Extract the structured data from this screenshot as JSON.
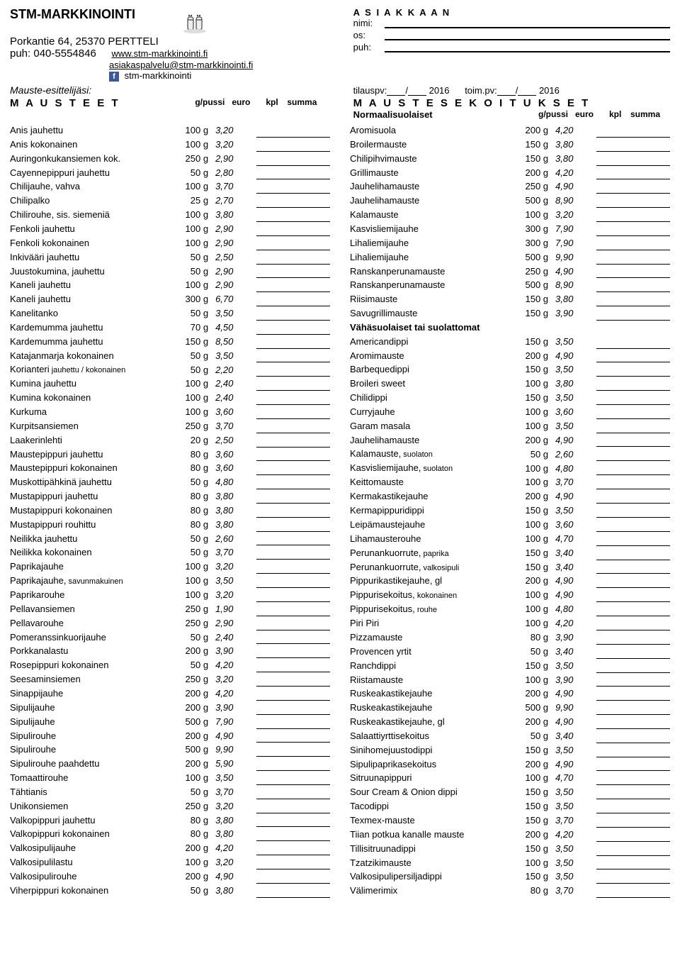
{
  "header": {
    "company": "STM-MARKKINOINTI",
    "address": "Porkantie 64, 25370 PERTTELI",
    "phone": "puh: 040-5554846",
    "web": "www.stm-markkinointi.fi",
    "email": "asiakaspalvelu@stm-markkinointi.fi",
    "fb": "stm-markkinointi",
    "customer_title": "A S I A K K A A N",
    "lbl_name": "nimi:",
    "lbl_addr": "os:",
    "lbl_phone": "puh:",
    "presenter": "Mauste-esittelijäsi:",
    "orderdate_lbl": "tilauspv:",
    "delivdate_lbl": "toim.pv:",
    "year": "2016"
  },
  "left": {
    "title": "M A U S T E E T",
    "h_g": "g/pussi",
    "h_e": "euro",
    "h_k": "kpl",
    "h_s": "summa",
    "rows": [
      {
        "n": "Anis jauhettu",
        "g": "100 g",
        "e": "3,20"
      },
      {
        "n": "Anis kokonainen",
        "g": "100 g",
        "e": "3,20"
      },
      {
        "n": "Auringonkukansiemen kok.",
        "g": "250 g",
        "e": "2,90"
      },
      {
        "n": "Cayennepippuri jauhettu",
        "g": "50 g",
        "e": "2,80"
      },
      {
        "n": "Chilijauhe, vahva",
        "g": "100 g",
        "e": "3,70"
      },
      {
        "n": "Chilipalko",
        "g": "25 g",
        "e": "2,70"
      },
      {
        "n": "Chilirouhe, sis. siemeniä",
        "g": "100 g",
        "e": "3,80"
      },
      {
        "n": "Fenkoli jauhettu",
        "g": "100 g",
        "e": "2,90"
      },
      {
        "n": "Fenkoli kokonainen",
        "g": "100 g",
        "e": "2,90"
      },
      {
        "n": "Inkivääri jauhettu",
        "g": "50 g",
        "e": "2,50"
      },
      {
        "n": "Juustokumina, jauhettu",
        "g": "50 g",
        "e": "2,90"
      },
      {
        "n": "Kaneli jauhettu",
        "g": "100 g",
        "e": "2,90"
      },
      {
        "n": "Kaneli jauhettu",
        "g": "300 g",
        "e": "6,70"
      },
      {
        "n": "Kanelitanko",
        "g": "50 g",
        "e": "3,50"
      },
      {
        "n": "Kardemumma jauhettu",
        "g": "70 g",
        "e": "4,50"
      },
      {
        "n": "Kardemumma jauhettu",
        "g": "150 g",
        "e": "8,50"
      },
      {
        "n": "Katajanmarja kokonainen",
        "g": "50 g",
        "e": "3,50"
      },
      {
        "n": "Korianteri",
        "sub": "jauhettu / kokonainen",
        "g": "50 g",
        "e": "2,20"
      },
      {
        "n": "Kumina jauhettu",
        "g": "100 g",
        "e": "2,40"
      },
      {
        "n": "Kumina kokonainen",
        "g": "100 g",
        "e": "2,40"
      },
      {
        "n": "Kurkuma",
        "g": "100 g",
        "e": "3,60"
      },
      {
        "n": "Kurpitsansiemen",
        "g": "250 g",
        "e": "3,70"
      },
      {
        "n": "Laakerinlehti",
        "g": "20 g",
        "e": "2,50"
      },
      {
        "n": "Maustepippuri jauhettu",
        "g": "80 g",
        "e": "3,60"
      },
      {
        "n": "Maustepippuri kokonainen",
        "g": "80 g",
        "e": "3,60"
      },
      {
        "n": "Muskottipähkinä jauhettu",
        "g": "50 g",
        "e": "4,80"
      },
      {
        "n": "Mustapippuri jauhettu",
        "g": "80 g",
        "e": "3,80"
      },
      {
        "n": "Mustapippuri kokonainen",
        "g": "80 g",
        "e": "3,80"
      },
      {
        "n": "Mustapippuri rouhittu",
        "g": "80 g",
        "e": "3,80"
      },
      {
        "n": "Neilikka jauhettu",
        "g": "50 g",
        "e": "2,60"
      },
      {
        "n": "Neilikka kokonainen",
        "g": "50 g",
        "e": "3,70"
      },
      {
        "n": "Paprikajauhe",
        "g": "100 g",
        "e": "3,20"
      },
      {
        "n": "Paprikajauhe,",
        "sub": "savunmakuinen",
        "g": "100 g",
        "e": "3,50"
      },
      {
        "n": "Paprikarouhe",
        "g": "100 g",
        "e": "3,20"
      },
      {
        "n": "Pellavansiemen",
        "g": "250 g",
        "e": "1,90"
      },
      {
        "n": "Pellavarouhe",
        "g": "250 g",
        "e": "2,90"
      },
      {
        "n": "Pomeranssinkuorijauhe",
        "g": "50 g",
        "e": "2,40"
      },
      {
        "n": "Porkkanalastu",
        "g": "200 g",
        "e": "3,90"
      },
      {
        "n": "Rosepippuri kokonainen",
        "g": "50 g",
        "e": "4,20"
      },
      {
        "n": "Seesaminsiemen",
        "g": "250 g",
        "e": "3,20"
      },
      {
        "n": "Sinappijauhe",
        "g": "200 g",
        "e": "4,20"
      },
      {
        "n": "Sipulijauhe",
        "g": "200 g",
        "e": "3,90"
      },
      {
        "n": "Sipulijauhe",
        "g": "500 g",
        "e": "7,90"
      },
      {
        "n": "Sipulirouhe",
        "g": "200 g",
        "e": "4,90"
      },
      {
        "n": "Sipulirouhe",
        "g": "500 g",
        "e": "9,90"
      },
      {
        "n": "Sipulirouhe paahdettu",
        "g": "200 g",
        "e": "5,90"
      },
      {
        "n": "Tomaattirouhe",
        "g": "100 g",
        "e": "3,50"
      },
      {
        "n": "Tähtianis",
        "g": "50 g",
        "e": "3,70"
      },
      {
        "n": "Unikonsiemen",
        "g": "250 g",
        "e": "3,20"
      },
      {
        "n": "Valkopippuri jauhettu",
        "g": "80 g",
        "e": "3,80"
      },
      {
        "n": "Valkopippuri kokonainen",
        "g": "80 g",
        "e": "3,80"
      },
      {
        "n": "Valkosipulijauhe",
        "g": "200 g",
        "e": "4,20"
      },
      {
        "n": "Valkosipulilastu",
        "g": "100 g",
        "e": "3,20"
      },
      {
        "n": "Valkosipulirouhe",
        "g": "200 g",
        "e": "4,90"
      },
      {
        "n": "Viherpippuri kokonainen",
        "g": "50 g",
        "e": "3,80"
      }
    ]
  },
  "right": {
    "title": "M A U S T E S E K O I T U K S E T",
    "sub1": "Normaalisuolaiset",
    "sub2": "Vähäsuolaiset tai suolattomat",
    "h_g": "g/pussi",
    "h_e": "euro",
    "h_k": "kpl",
    "h_s": "summa",
    "rows1": [
      {
        "n": "Aromisuola",
        "g": "200 g",
        "e": "4,20"
      },
      {
        "n": "Broilermauste",
        "g": "150 g",
        "e": "3,80"
      },
      {
        "n": "Chilipihvimauste",
        "g": "150 g",
        "e": "3,80"
      },
      {
        "n": "Grillimauste",
        "g": "200 g",
        "e": "4,20"
      },
      {
        "n": "Jauhelihamauste",
        "g": "250 g",
        "e": "4,90"
      },
      {
        "n": "Jauhelihamauste",
        "g": "500 g",
        "e": "8,90"
      },
      {
        "n": "Kalamauste",
        "g": "100 g",
        "e": "3,20"
      },
      {
        "n": "Kasvisliemijauhe",
        "g": "300 g",
        "e": "7,90"
      },
      {
        "n": "Lihaliemijauhe",
        "g": "300 g",
        "e": "7,90"
      },
      {
        "n": "Lihaliemijauhe",
        "g": "500 g",
        "e": "9,90"
      },
      {
        "n": "Ranskanperunamauste",
        "g": "250 g",
        "e": "4,90"
      },
      {
        "n": "Ranskanperunamauste",
        "g": "500 g",
        "e": "8,90"
      },
      {
        "n": "Riisimauste",
        "g": "150 g",
        "e": "3,80"
      },
      {
        "n": "Savugrillimauste",
        "g": "150 g",
        "e": "3,90"
      }
    ],
    "rows2": [
      {
        "n": "Americandippi",
        "g": "150 g",
        "e": "3,50"
      },
      {
        "n": "Aromimauste",
        "g": "200 g",
        "e": "4,90"
      },
      {
        "n": "Barbequedippi",
        "g": "150 g",
        "e": "3,50"
      },
      {
        "n": "Broileri sweet",
        "g": "100 g",
        "e": "3,80"
      },
      {
        "n": "Chilidippi",
        "g": "150 g",
        "e": "3,50"
      },
      {
        "n": "Curryjauhe",
        "g": "100 g",
        "e": "3,60"
      },
      {
        "n": "Garam masala",
        "g": "100 g",
        "e": "3,50"
      },
      {
        "n": "Jauhelihamauste",
        "g": "200 g",
        "e": "4,90"
      },
      {
        "n": "Kalamauste,",
        "sub": "suolaton",
        "g": "50 g",
        "e": "2,60"
      },
      {
        "n": "Kasvisliemijauhe,",
        "sub": "suolaton",
        "g": "100 g",
        "e": "4,80"
      },
      {
        "n": "Keittomauste",
        "g": "100 g",
        "e": "3,70"
      },
      {
        "n": "Kermakastikejauhe",
        "g": "200 g",
        "e": "4,90"
      },
      {
        "n": "Kermapippuridippi",
        "g": "150 g",
        "e": "3,50"
      },
      {
        "n": "Leipämaustejauhe",
        "g": "100 g",
        "e": "3,60"
      },
      {
        "n": "Lihamausterouhe",
        "g": "100 g",
        "e": "4,70"
      },
      {
        "n": "Perunankuorrute,",
        "sub": "paprika",
        "g": "150 g",
        "e": "3,40"
      },
      {
        "n": "Perunankuorrute,",
        "sub": "valkosipuli",
        "g": "150 g",
        "e": "3,40"
      },
      {
        "n": "Pippurikastikejauhe, gl",
        "g": "200 g",
        "e": "4,90"
      },
      {
        "n": "Pippurisekoitus,",
        "sub": "kokonainen",
        "g": "100 g",
        "e": "4,90"
      },
      {
        "n": "Pippurisekoitus,",
        "sub": "rouhe",
        "g": "100 g",
        "e": "4,80"
      },
      {
        "n": "Piri Piri",
        "g": "100 g",
        "e": "4,20"
      },
      {
        "n": "Pizzamauste",
        "g": "80 g",
        "e": "3,90"
      },
      {
        "n": "Provencen yrtit",
        "g": "50 g",
        "e": "3,40"
      },
      {
        "n": "Ranchdippi",
        "g": "150 g",
        "e": "3,50"
      },
      {
        "n": "Riistamauste",
        "g": "100 g",
        "e": "3,90"
      },
      {
        "n": "Ruskeakastikejauhe",
        "g": "200 g",
        "e": "4,90"
      },
      {
        "n": "Ruskeakastikejauhe",
        "g": "500 g",
        "e": "9,90"
      },
      {
        "n": "Ruskeakastikejauhe, gl",
        "g": "200 g",
        "e": "4,90"
      },
      {
        "n": "Salaattiyrttisekoitus",
        "g": "50 g",
        "e": "3,40"
      },
      {
        "n": "Sinihomejuustodippi",
        "g": "150 g",
        "e": "3,50"
      },
      {
        "n": "Sipulipaprikasekoitus",
        "g": "200 g",
        "e": "4,90"
      },
      {
        "n": "Sitruunapippuri",
        "g": "100 g",
        "e": "4,70"
      },
      {
        "n": "Sour Cream & Onion dippi",
        "g": "150 g",
        "e": "3,50"
      },
      {
        "n": "Tacodippi",
        "g": "150 g",
        "e": "3,50"
      },
      {
        "n": "Texmex-mauste",
        "g": "150 g",
        "e": "3,70"
      },
      {
        "n": "Tiian potkua kanalle mauste",
        "g": "200 g",
        "e": "4,20"
      },
      {
        "n": "Tillisitruunadippi",
        "g": "150 g",
        "e": "3,50"
      },
      {
        "n": "Tzatzikimauste",
        "g": "100 g",
        "e": "3,50"
      },
      {
        "n": "Valkosipulipersiljadippi",
        "g": "150 g",
        "e": "3,50"
      },
      {
        "n": "Välimerimix",
        "g": "80 g",
        "e": "3,70"
      }
    ]
  }
}
